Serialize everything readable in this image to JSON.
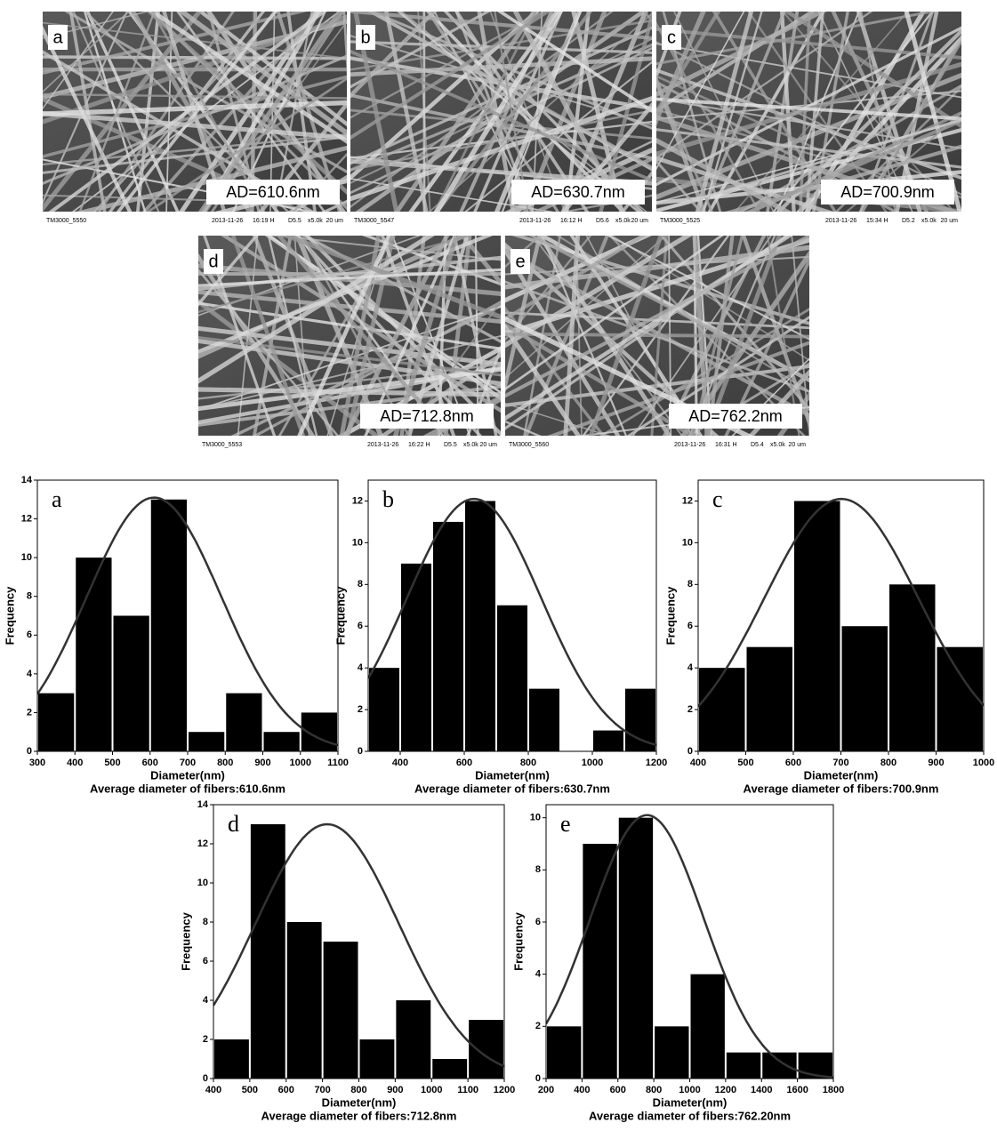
{
  "images": [
    {
      "label": "a",
      "ad": "AD=610.6nm",
      "footer": [
        "TM3000_5550",
        "2013-11-26",
        "16:19 H",
        "D5.5",
        "x5.0k",
        "20 um"
      ]
    },
    {
      "label": "b",
      "ad": "AD=630.7nm",
      "footer": [
        "TM3000_5547",
        "2013-11-26",
        "16:12 H",
        "D5.6",
        "x5.0k",
        "20 um"
      ]
    },
    {
      "label": "c",
      "ad": "AD=700.9nm",
      "footer": [
        "TM3000_5525",
        "2013-11-26",
        "15:34 H",
        "D5.2",
        "x5.0k",
        "20 um"
      ]
    },
    {
      "label": "d",
      "ad": "AD=712.8nm",
      "footer": [
        "TM3000_5553",
        "2013-11-26",
        "16:22 H",
        "D5.5",
        "x5.0k",
        "20 um"
      ]
    },
    {
      "label": "e",
      "ad": "AD=762.2nm",
      "footer": [
        "TM3000_5560",
        "2013-11-26",
        "16:31 H",
        "D5.4",
        "x5.0k",
        "20 um"
      ]
    }
  ],
  "chart_data": [
    {
      "type": "histogram",
      "label": "a",
      "xlabel": "Diameter(nm)",
      "ylabel": "Frequency",
      "subtitle": "Average diameter of fibers:610.6nm",
      "bins": [
        300,
        400,
        500,
        600,
        700,
        800,
        900,
        1000,
        1100
      ],
      "values": [
        3,
        10,
        7,
        13,
        1,
        3,
        1,
        2
      ],
      "color": "#000000",
      "xlim": [
        300,
        1100
      ],
      "ylim": [
        0,
        14
      ],
      "xticks": [
        300,
        400,
        500,
        600,
        700,
        800,
        900,
        1000,
        1100
      ],
      "yticks": [
        0,
        2,
        4,
        6,
        8,
        10,
        12,
        14
      ],
      "curve": {
        "mean": 610.6,
        "sd": 180,
        "peak": 13.1
      }
    },
    {
      "type": "histogram",
      "label": "b",
      "xlabel": "Diameter(nm)",
      "ylabel": "Frequency",
      "subtitle": "Average diameter of fibers:630.7nm",
      "bins": [
        300,
        400,
        500,
        600,
        700,
        800,
        900,
        1000,
        1100,
        1200
      ],
      "values": [
        4,
        9,
        11,
        12,
        7,
        3,
        0,
        1,
        3
      ],
      "color": "#000000",
      "xlim": [
        300,
        1200
      ],
      "ylim": [
        0,
        13
      ],
      "xticks": [
        400,
        600,
        800,
        1000,
        1200
      ],
      "yticks": [
        0,
        2,
        4,
        6,
        8,
        10,
        12
      ],
      "curve": {
        "mean": 630.7,
        "sd": 210,
        "peak": 12.1
      }
    },
    {
      "type": "histogram",
      "label": "c",
      "xlabel": "Diameter(nm)",
      "ylabel": "Frequency",
      "subtitle": "Average diameter of fibers:700.9nm",
      "bins": [
        400,
        500,
        600,
        700,
        800,
        900,
        1000
      ],
      "values": [
        4,
        5,
        12,
        6,
        8,
        5
      ],
      "color": "#000000",
      "xlim": [
        400,
        1000
      ],
      "ylim": [
        0,
        13
      ],
      "xticks": [
        400,
        500,
        600,
        700,
        800,
        900,
        1000
      ],
      "yticks": [
        0,
        2,
        4,
        6,
        8,
        10,
        12
      ],
      "curve": {
        "mean": 700.9,
        "sd": 162,
        "peak": 12.1
      }
    },
    {
      "type": "histogram",
      "label": "d",
      "xlabel": "Diameter(nm)",
      "ylabel": "Frequency",
      "subtitle": "Average diameter of fibers:712.8nm",
      "bins": [
        400,
        500,
        600,
        700,
        800,
        900,
        1000,
        1100,
        1200
      ],
      "values": [
        2,
        13,
        8,
        7,
        2,
        4,
        1,
        3
      ],
      "color": "#000000",
      "xlim": [
        400,
        1200
      ],
      "ylim": [
        0,
        14
      ],
      "xticks": [
        400,
        500,
        600,
        700,
        800,
        900,
        1000,
        1100,
        1200
      ],
      "yticks": [
        0,
        2,
        4,
        6,
        8,
        10,
        12,
        14
      ],
      "curve": {
        "mean": 712.8,
        "sd": 198,
        "peak": 13
      }
    },
    {
      "type": "histogram",
      "label": "e",
      "xlabel": "Diameter(nm)",
      "ylabel": "Frequency",
      "subtitle": "Average diameter of fibers:762.20nm",
      "bins": [
        200,
        400,
        600,
        800,
        1000,
        1200,
        1400,
        1600,
        1800
      ],
      "values": [
        2,
        9,
        10,
        2,
        4,
        1,
        1,
        1
      ],
      "color": "#000000",
      "xlim": [
        200,
        1800
      ],
      "ylim": [
        0,
        10.5
      ],
      "xticks": [
        200,
        400,
        600,
        800,
        1000,
        1200,
        1400,
        1600,
        1800
      ],
      "yticks": [
        0,
        2,
        4,
        6,
        8,
        10
      ],
      "curve": {
        "mean": 762.2,
        "sd": 317,
        "peak": 10.1
      }
    }
  ]
}
